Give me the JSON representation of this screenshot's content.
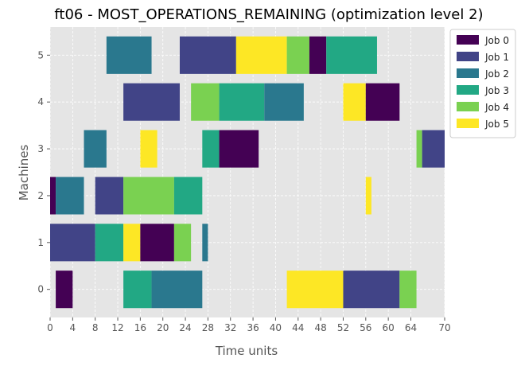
{
  "chart_data": {
    "type": "gantt",
    "title": "ft06 - MOST_OPERATIONS_REMAINING (optimization level 2)",
    "xlabel": "Time units",
    "ylabel": "Machines",
    "xlim": [
      0,
      70
    ],
    "ylim": [
      -0.6,
      5.6
    ],
    "xticks": [
      0,
      4,
      8,
      12,
      16,
      20,
      24,
      28,
      32,
      36,
      40,
      44,
      48,
      52,
      56,
      60,
      64,
      70
    ],
    "yticks": [
      0,
      1,
      2,
      3,
      4,
      5
    ],
    "grid": true,
    "legend_placement": "upper-right, outside plot",
    "jobs": [
      {
        "name": "Job 0",
        "color": "#440154"
      },
      {
        "name": "Job 1",
        "color": "#414487"
      },
      {
        "name": "Job 2",
        "color": "#2a788e"
      },
      {
        "name": "Job 3",
        "color": "#22a884"
      },
      {
        "name": "Job 4",
        "color": "#7ad151"
      },
      {
        "name": "Job 5",
        "color": "#fde725"
      }
    ],
    "tasks": [
      {
        "machine": 0,
        "job": 0,
        "start": 1,
        "end": 4
      },
      {
        "machine": 0,
        "job": 3,
        "start": 13,
        "end": 18
      },
      {
        "machine": 0,
        "job": 2,
        "start": 18,
        "end": 27
      },
      {
        "machine": 0,
        "job": 5,
        "start": 42,
        "end": 52
      },
      {
        "machine": 0,
        "job": 1,
        "start": 52,
        "end": 62
      },
      {
        "machine": 0,
        "job": 4,
        "start": 62,
        "end": 65
      },
      {
        "machine": 1,
        "job": 1,
        "start": 0,
        "end": 8
      },
      {
        "machine": 1,
        "job": 3,
        "start": 8,
        "end": 13
      },
      {
        "machine": 1,
        "job": 5,
        "start": 13,
        "end": 16
      },
      {
        "machine": 1,
        "job": 0,
        "start": 16,
        "end": 22
      },
      {
        "machine": 1,
        "job": 4,
        "start": 22,
        "end": 25
      },
      {
        "machine": 1,
        "job": 2,
        "start": 27,
        "end": 28
      },
      {
        "machine": 2,
        "job": 0,
        "start": 0,
        "end": 1
      },
      {
        "machine": 2,
        "job": 2,
        "start": 1,
        "end": 6
      },
      {
        "machine": 2,
        "job": 1,
        "start": 8,
        "end": 13
      },
      {
        "machine": 2,
        "job": 4,
        "start": 13,
        "end": 22
      },
      {
        "machine": 2,
        "job": 3,
        "start": 22,
        "end": 27
      },
      {
        "machine": 2,
        "job": 5,
        "start": 56,
        "end": 57
      },
      {
        "machine": 3,
        "job": 2,
        "start": 6,
        "end": 10
      },
      {
        "machine": 3,
        "job": 5,
        "start": 16,
        "end": 19
      },
      {
        "machine": 3,
        "job": 3,
        "start": 27,
        "end": 30
      },
      {
        "machine": 3,
        "job": 0,
        "start": 30,
        "end": 37
      },
      {
        "machine": 3,
        "job": 4,
        "start": 65,
        "end": 66
      },
      {
        "machine": 3,
        "job": 1,
        "start": 66,
        "end": 70
      },
      {
        "machine": 4,
        "job": 1,
        "start": 13,
        "end": 23
      },
      {
        "machine": 4,
        "job": 4,
        "start": 25,
        "end": 30
      },
      {
        "machine": 4,
        "job": 3,
        "start": 30,
        "end": 38
      },
      {
        "machine": 4,
        "job": 2,
        "start": 38,
        "end": 45
      },
      {
        "machine": 4,
        "job": 5,
        "start": 52,
        "end": 56
      },
      {
        "machine": 4,
        "job": 0,
        "start": 56,
        "end": 62
      },
      {
        "machine": 5,
        "job": 2,
        "start": 10,
        "end": 18
      },
      {
        "machine": 5,
        "job": 1,
        "start": 23,
        "end": 33
      },
      {
        "machine": 5,
        "job": 5,
        "start": 33,
        "end": 42
      },
      {
        "machine": 5,
        "job": 4,
        "start": 42,
        "end": 46
      },
      {
        "machine": 5,
        "job": 0,
        "start": 46,
        "end": 49
      },
      {
        "machine": 5,
        "job": 3,
        "start": 49,
        "end": 58
      }
    ]
  }
}
